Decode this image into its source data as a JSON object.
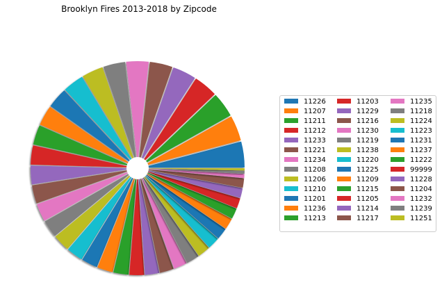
{
  "chart_data": {
    "type": "pie",
    "title": "Brooklyn Fires 2013-2018 by Zipcode",
    "categories": [
      "11226",
      "11207",
      "11211",
      "11212",
      "11233",
      "11221",
      "11234",
      "11208",
      "11206",
      "11210",
      "11201",
      "11236",
      "11213",
      "11203",
      "11229",
      "11216",
      "11230",
      "11219",
      "11238",
      "11220",
      "11225",
      "11209",
      "11215",
      "11205",
      "11214",
      "11217",
      "11235",
      "11218",
      "11224",
      "11223",
      "11231",
      "11237",
      "11222",
      "99999",
      "11228",
      "11204",
      "11232",
      "11239",
      "11251"
    ],
    "values": [
      5.8,
      5.7,
      5.6,
      5.4,
      5.3,
      5.1,
      5.0,
      4.9,
      4.8,
      4.7,
      4.6,
      4.5,
      4.4,
      4.3,
      4.2,
      4.1,
      4.0,
      3.9,
      3.8,
      3.7,
      3.6,
      3.5,
      3.4,
      3.3,
      3.2,
      3.1,
      3.0,
      2.9,
      2.8,
      2.7,
      2.6,
      2.5,
      2.4,
      2.3,
      2.2,
      2.1,
      0.9,
      0.7,
      0.5
    ],
    "colors": [
      "#1f77b4",
      "#ff7f0e",
      "#2ca02c",
      "#d62728",
      "#9467bd",
      "#8c564b",
      "#e377c2",
      "#7f7f7f",
      "#bcbd22",
      "#17becf"
    ],
    "start_angle_deg": 0,
    "direction": "counterclockwise",
    "explode": true,
    "shadow": true,
    "donut_hole": true,
    "legend": {
      "placement": "right",
      "columns": 3
    }
  }
}
